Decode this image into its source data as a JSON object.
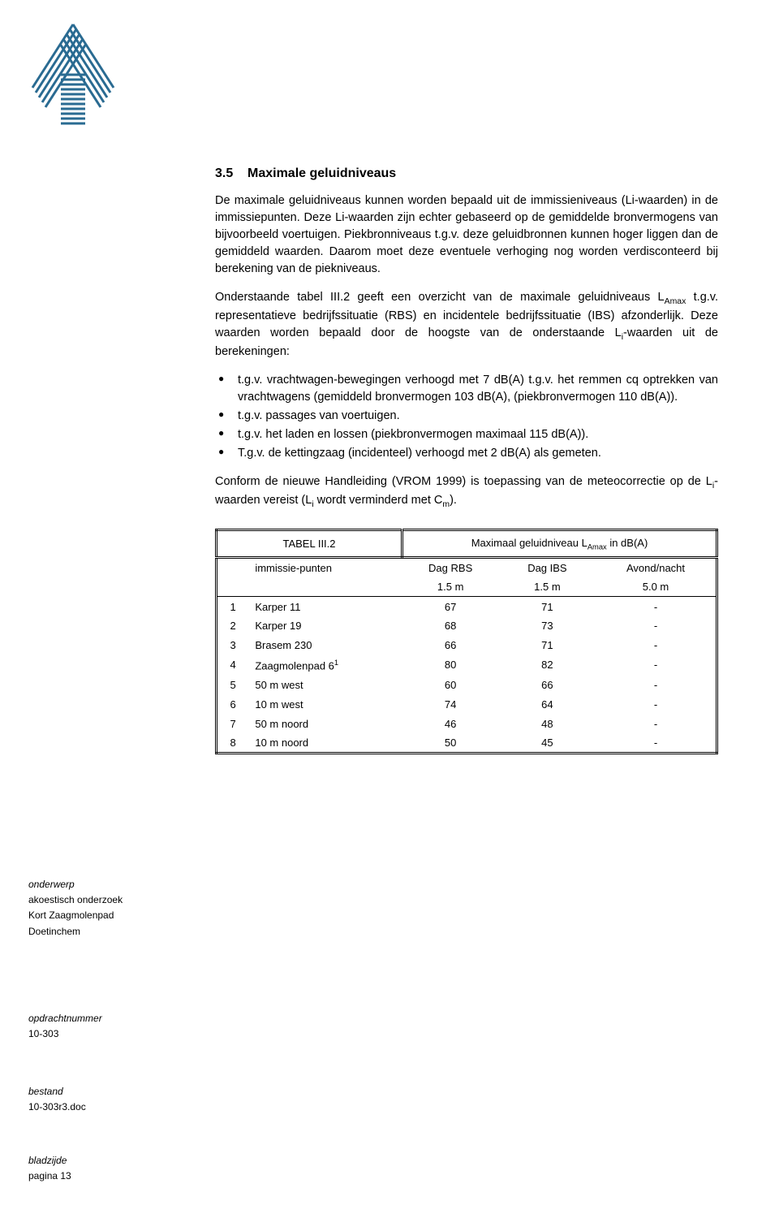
{
  "logo": {
    "stroke_color": "#2a6b92",
    "bar_count": 17
  },
  "section": {
    "number": "3.5",
    "title": "Maximale geluidniveaus",
    "p1": "De maximale geluidniveaus kunnen worden bepaald uit de immissieniveaus (Li-waarden) in de immissiepunten. Deze Li-waarden zijn echter gebaseerd op de gemiddelde bronvermogens van bijvoorbeeld voertuigen. Piekbronniveaus t.g.v. deze geluidbronnen kunnen hoger liggen dan de gemiddeld waarden. Daarom moet deze eventuele verhoging nog worden verdisconteerd bij berekening van de piekniveaus.",
    "p2_a": "Onderstaande tabel III.2 geeft een overzicht van de maximale geluidniveaus L",
    "p2_b": " t.g.v. representatieve bedrijfssituatie (RBS) en incidentele bedrijfssituatie (IBS) afzonderlijk. Deze waarden worden bepaald door de hoogste van de onderstaande L",
    "p2_c": "-waarden uit de berekeningen:",
    "sub_amax": "Amax",
    "sub_i": "i",
    "bullets": [
      "t.g.v. vrachtwagen-bewegingen verhoogd met 7 dB(A) t.g.v. het remmen cq optrekken van vrachtwagens (gemiddeld bronvermogen 103 dB(A), (piekbronvermogen 110 dB(A)).",
      "t.g.v. passages van voertuigen.",
      "t.g.v. het laden en lossen (piekbronvermogen maximaal 115 dB(A)).",
      "T.g.v. de kettingzaag (incidenteel) verhoogd met 2 dB(A) als gemeten."
    ],
    "p3_a": "Conform de nieuwe Handleiding (VROM 1999) is toepassing van de meteocorrectie op de L",
    "p3_b": "-waarden vereist (L",
    "p3_c": " wordt verminderd met C",
    "p3_d": ").",
    "sub_m": "m"
  },
  "table": {
    "title_left": "TABEL III.2",
    "title_right_a": "Maximaal geluidniveau L",
    "title_right_b": " in dB(A)",
    "sub_amax": "Amax",
    "col_immissie": "immissie-punten",
    "col_dag_rbs": "Dag RBS",
    "col_dag_ibs": "Dag IBS",
    "col_avond": "Avond/nacht",
    "m_rbs": "1.5 m",
    "m_ibs": "1.5 m",
    "m_avond": "5.0 m",
    "rows": [
      {
        "n": "1",
        "name": "Karper 11",
        "rbs": "67",
        "ibs": "71",
        "av": "-"
      },
      {
        "n": "2",
        "name": "Karper 19",
        "rbs": "68",
        "ibs": "73",
        "av": "-"
      },
      {
        "n": "3",
        "name": "Brasem 230",
        "rbs": "66",
        "ibs": "71",
        "av": "-"
      },
      {
        "n": "4",
        "name": "Zaagmolenpad 6",
        "sup": "1",
        "rbs": "80",
        "ibs": "82",
        "av": "-"
      },
      {
        "n": "5",
        "name": "50 m west",
        "rbs": "60",
        "ibs": "66",
        "av": "-"
      },
      {
        "n": "6",
        "name": "10 m west",
        "rbs": "74",
        "ibs": "64",
        "av": "-"
      },
      {
        "n": "7",
        "name": "50 m noord",
        "rbs": "46",
        "ibs": "48",
        "av": "-"
      },
      {
        "n": "8",
        "name": "10 m noord",
        "rbs": "50",
        "ibs": "45",
        "av": "-"
      }
    ]
  },
  "meta": {
    "onderwerp_label": "onderwerp",
    "onderwerp_l1": "akoestisch onderzoek",
    "onderwerp_l2": "Kort Zaagmolenpad",
    "onderwerp_l3": "Doetinchem",
    "opdracht_label": "opdrachtnummer",
    "opdracht_val": "10-303",
    "bestand_label": "bestand",
    "bestand_val": "10-303r3.doc",
    "bladzijde_label": "bladzijde",
    "bladzijde_val": "pagina 13"
  }
}
